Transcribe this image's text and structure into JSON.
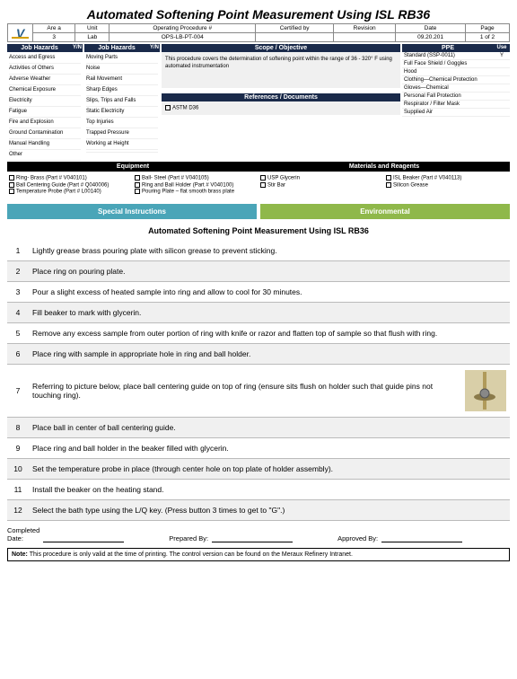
{
  "title": "Automated Softening Point Measurement Using ISL RB36",
  "header": {
    "cols": [
      "Are a",
      "Unit",
      "Operating Procedure #",
      "Certified by",
      "Revision",
      "Date",
      "Page"
    ],
    "vals": [
      "3",
      "Lab",
      "OPS-LB-PT-004",
      "",
      "",
      "09.20.201",
      "1 of 2"
    ]
  },
  "jobHazards": {
    "h1": "Job Hazards",
    "h2": "Job Hazards",
    "yn": "Y/N",
    "col1": [
      "Access and Egress",
      "Activities of Others",
      "Adverse Weather",
      "Chemical Exposure",
      "Electricity",
      "Fatigue",
      "Fire and Explosion",
      "Ground Contamination",
      "Manual Handling",
      "Other"
    ],
    "col2": [
      "Moving Parts",
      "Noise",
      "Rail Movement",
      "Sharp Edges",
      "Slips, Trips and Falls",
      "Static Electricity",
      "Top Injuries",
      "Trapped Pressure",
      "Working at Height",
      ""
    ]
  },
  "scope": {
    "h": "Scope / Objective",
    "body": "This procedure covers the determination of softening point within the range of 36 - 320° F using automated instrumentation"
  },
  "refs": {
    "h": "References / Documents",
    "items": [
      "ASTM D36"
    ]
  },
  "ppe": {
    "h": "PPE",
    "use": "Use",
    "rows": [
      {
        "n": "Standard (SSP-0011)",
        "u": "Y"
      },
      {
        "n": "Full Face Shield / Goggles",
        "u": ""
      },
      {
        "n": "Hood",
        "u": ""
      },
      {
        "n": "Clothing—Chemical Protection",
        "u": ""
      },
      {
        "n": "Gloves—Chemical",
        "u": ""
      },
      {
        "n": "Personal Fall Protection",
        "u": ""
      },
      {
        "n": "Respirator / Filter Mask",
        "u": ""
      },
      {
        "n": "Supplied Air",
        "u": ""
      }
    ]
  },
  "equipment": {
    "h": "Equipment",
    "cols": [
      [
        "Ring- Brass (Part # V040101)",
        "Ball Centering Guide (Part # Q040006)",
        "Temperature Probe (Part # L00140)"
      ],
      [
        "Ball- Steel (Part # V040105)",
        "Ring and Ball Holder (Part # V040100)",
        "Pouring Plate – flat smooth brass plate"
      ]
    ]
  },
  "materials": {
    "h": "Materials and Reagents",
    "cols": [
      [
        "USP Glycerin",
        "Stir Bar"
      ],
      [
        "ISL Beaker (Part # V040113)",
        "Silicon Grease"
      ]
    ]
  },
  "bars": {
    "si": "Special Instructions",
    "env": "Environmental"
  },
  "subtitle": "Automated Softening Point Measurement Using ISL RB36",
  "steps": [
    {
      "n": 1,
      "t": "Lightly grease brass pouring plate with silicon grease to prevent sticking."
    },
    {
      "n": 2,
      "t": "Place ring on pouring plate."
    },
    {
      "n": 3,
      "t": "Pour a slight excess of heated sample into ring and allow to cool for 30 minutes."
    },
    {
      "n": 4,
      "t": "Fill beaker to mark with glycerin."
    },
    {
      "n": 5,
      "t": "Remove any excess sample from outer portion of ring with knife or razor and flatten top of sample so that flush with ring."
    },
    {
      "n": 6,
      "t": "Place ring with sample in appropriate hole in ring and ball holder."
    },
    {
      "n": 7,
      "t": "Referring to picture below, place ball centering guide on top of ring (ensure sits flush on holder such\nthat guide pins not touching ring).",
      "img": true
    },
    {
      "n": 8,
      "t": "Place ball in center of ball centering guide."
    },
    {
      "n": 9,
      "t": "Place ring and ball holder in the beaker filled with glycerin."
    },
    {
      "n": 10,
      "t": "Set the temperature probe in place (through center hole on top plate of holder assembly)."
    },
    {
      "n": 11,
      "t": "Install the beaker on the heating stand."
    },
    {
      "n": 12,
      "t": "Select the bath type using the L/Q key.  (Press button 3 times to get to \"G\".)"
    }
  ],
  "sign": {
    "completed": "Completed",
    "date": "Date:",
    "prep": "Prepared By:",
    "appr": "Approved By:"
  },
  "note": {
    "label": "Note:",
    "text": "This procedure is only valid at the time of printing. The control version can be found on the Meraux Refinery Intranet."
  },
  "colors": {
    "darkNavy": "#1a2a4a",
    "teal": "#4aa5b8",
    "green": "#8fb84a",
    "black": "#000000"
  }
}
